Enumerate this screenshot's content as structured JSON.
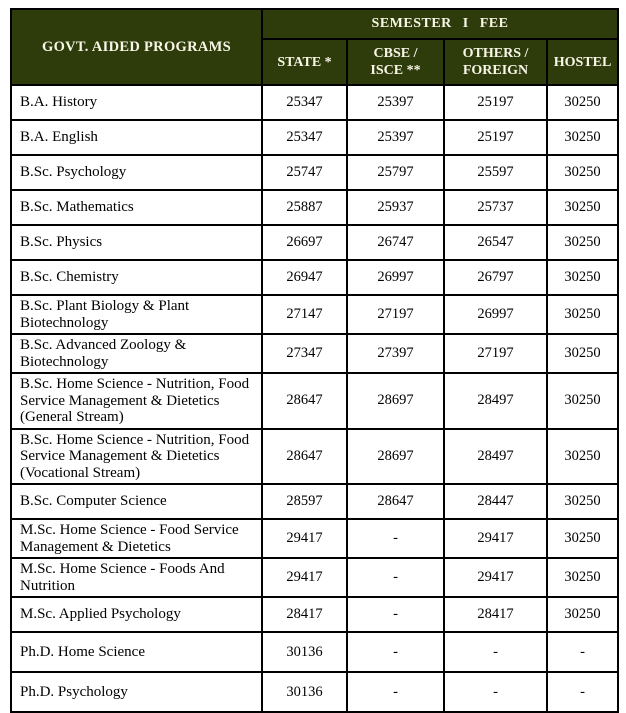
{
  "table": {
    "program_header": "GOVT. AIDED PROGRAMS",
    "fee_header": "SEMESTER I FEE",
    "columns": {
      "state": "STATE *",
      "cbse": "CBSE /\nISCE **",
      "others": "OTHERS /\nFOREIGN",
      "hostel": "HOSTEL"
    },
    "rows": [
      {
        "program": "B.A. History",
        "state": "25347",
        "cbse": "25397",
        "others": "25197",
        "hostel": "30250"
      },
      {
        "program": "B.A. English",
        "state": "25347",
        "cbse": "25397",
        "others": "25197",
        "hostel": "30250"
      },
      {
        "program": "B.Sc. Psychology",
        "state": "25747",
        "cbse": "25797",
        "others": "25597",
        "hostel": "30250"
      },
      {
        "program": "B.Sc. Mathematics",
        "state": "25887",
        "cbse": "25937",
        "others": "25737",
        "hostel": "30250"
      },
      {
        "program": "B.Sc. Physics",
        "state": "26697",
        "cbse": "26747",
        "others": "26547",
        "hostel": "30250"
      },
      {
        "program": "B.Sc. Chemistry",
        "state": "26947",
        "cbse": "26997",
        "others": "26797",
        "hostel": "30250"
      },
      {
        "program": "B.Sc. Plant Biology & Plant Biotechnology",
        "state": "27147",
        "cbse": "27197",
        "others": "26997",
        "hostel": "30250"
      },
      {
        "program": "B.Sc. Advanced Zoology & Biotechnology",
        "state": "27347",
        "cbse": "27397",
        "others": "27197",
        "hostel": "30250"
      },
      {
        "program": "B.Sc. Home Science - Nutrition, Food Service Management & Dietetics (General Stream)",
        "state": "28647",
        "cbse": "28697",
        "others": "28497",
        "hostel": "30250"
      },
      {
        "program": "B.Sc. Home Science - Nutrition, Food Service Management & Dietetics (Vocational Stream)",
        "state": "28647",
        "cbse": "28697",
        "others": "28497",
        "hostel": "30250"
      },
      {
        "program": "B.Sc. Computer Science",
        "state": "28597",
        "cbse": "28647",
        "others": "28447",
        "hostel": "30250"
      },
      {
        "program": "M.Sc. Home Science - Food Service Management & Dietetics",
        "state": "29417",
        "cbse": "-",
        "others": "29417",
        "hostel": "30250"
      },
      {
        "program": "M.Sc. Home Science - Foods And Nutrition",
        "state": "29417",
        "cbse": "-",
        "others": "29417",
        "hostel": "30250"
      },
      {
        "program": "M.Sc. Applied Psychology",
        "state": "28417",
        "cbse": "-",
        "others": "28417",
        "hostel": "30250"
      },
      {
        "program": "Ph.D. Home Science",
        "state": "30136",
        "cbse": "-",
        "others": "-",
        "hostel": "-"
      },
      {
        "program": "Ph.D. Psychology",
        "state": "30136",
        "cbse": "-",
        "others": "-",
        "hostel": "-"
      }
    ]
  },
  "colors": {
    "header_bg": "#2e3b0a",
    "header_text": "#f8f6e7",
    "border": "#000000",
    "body_text": "#000000"
  }
}
